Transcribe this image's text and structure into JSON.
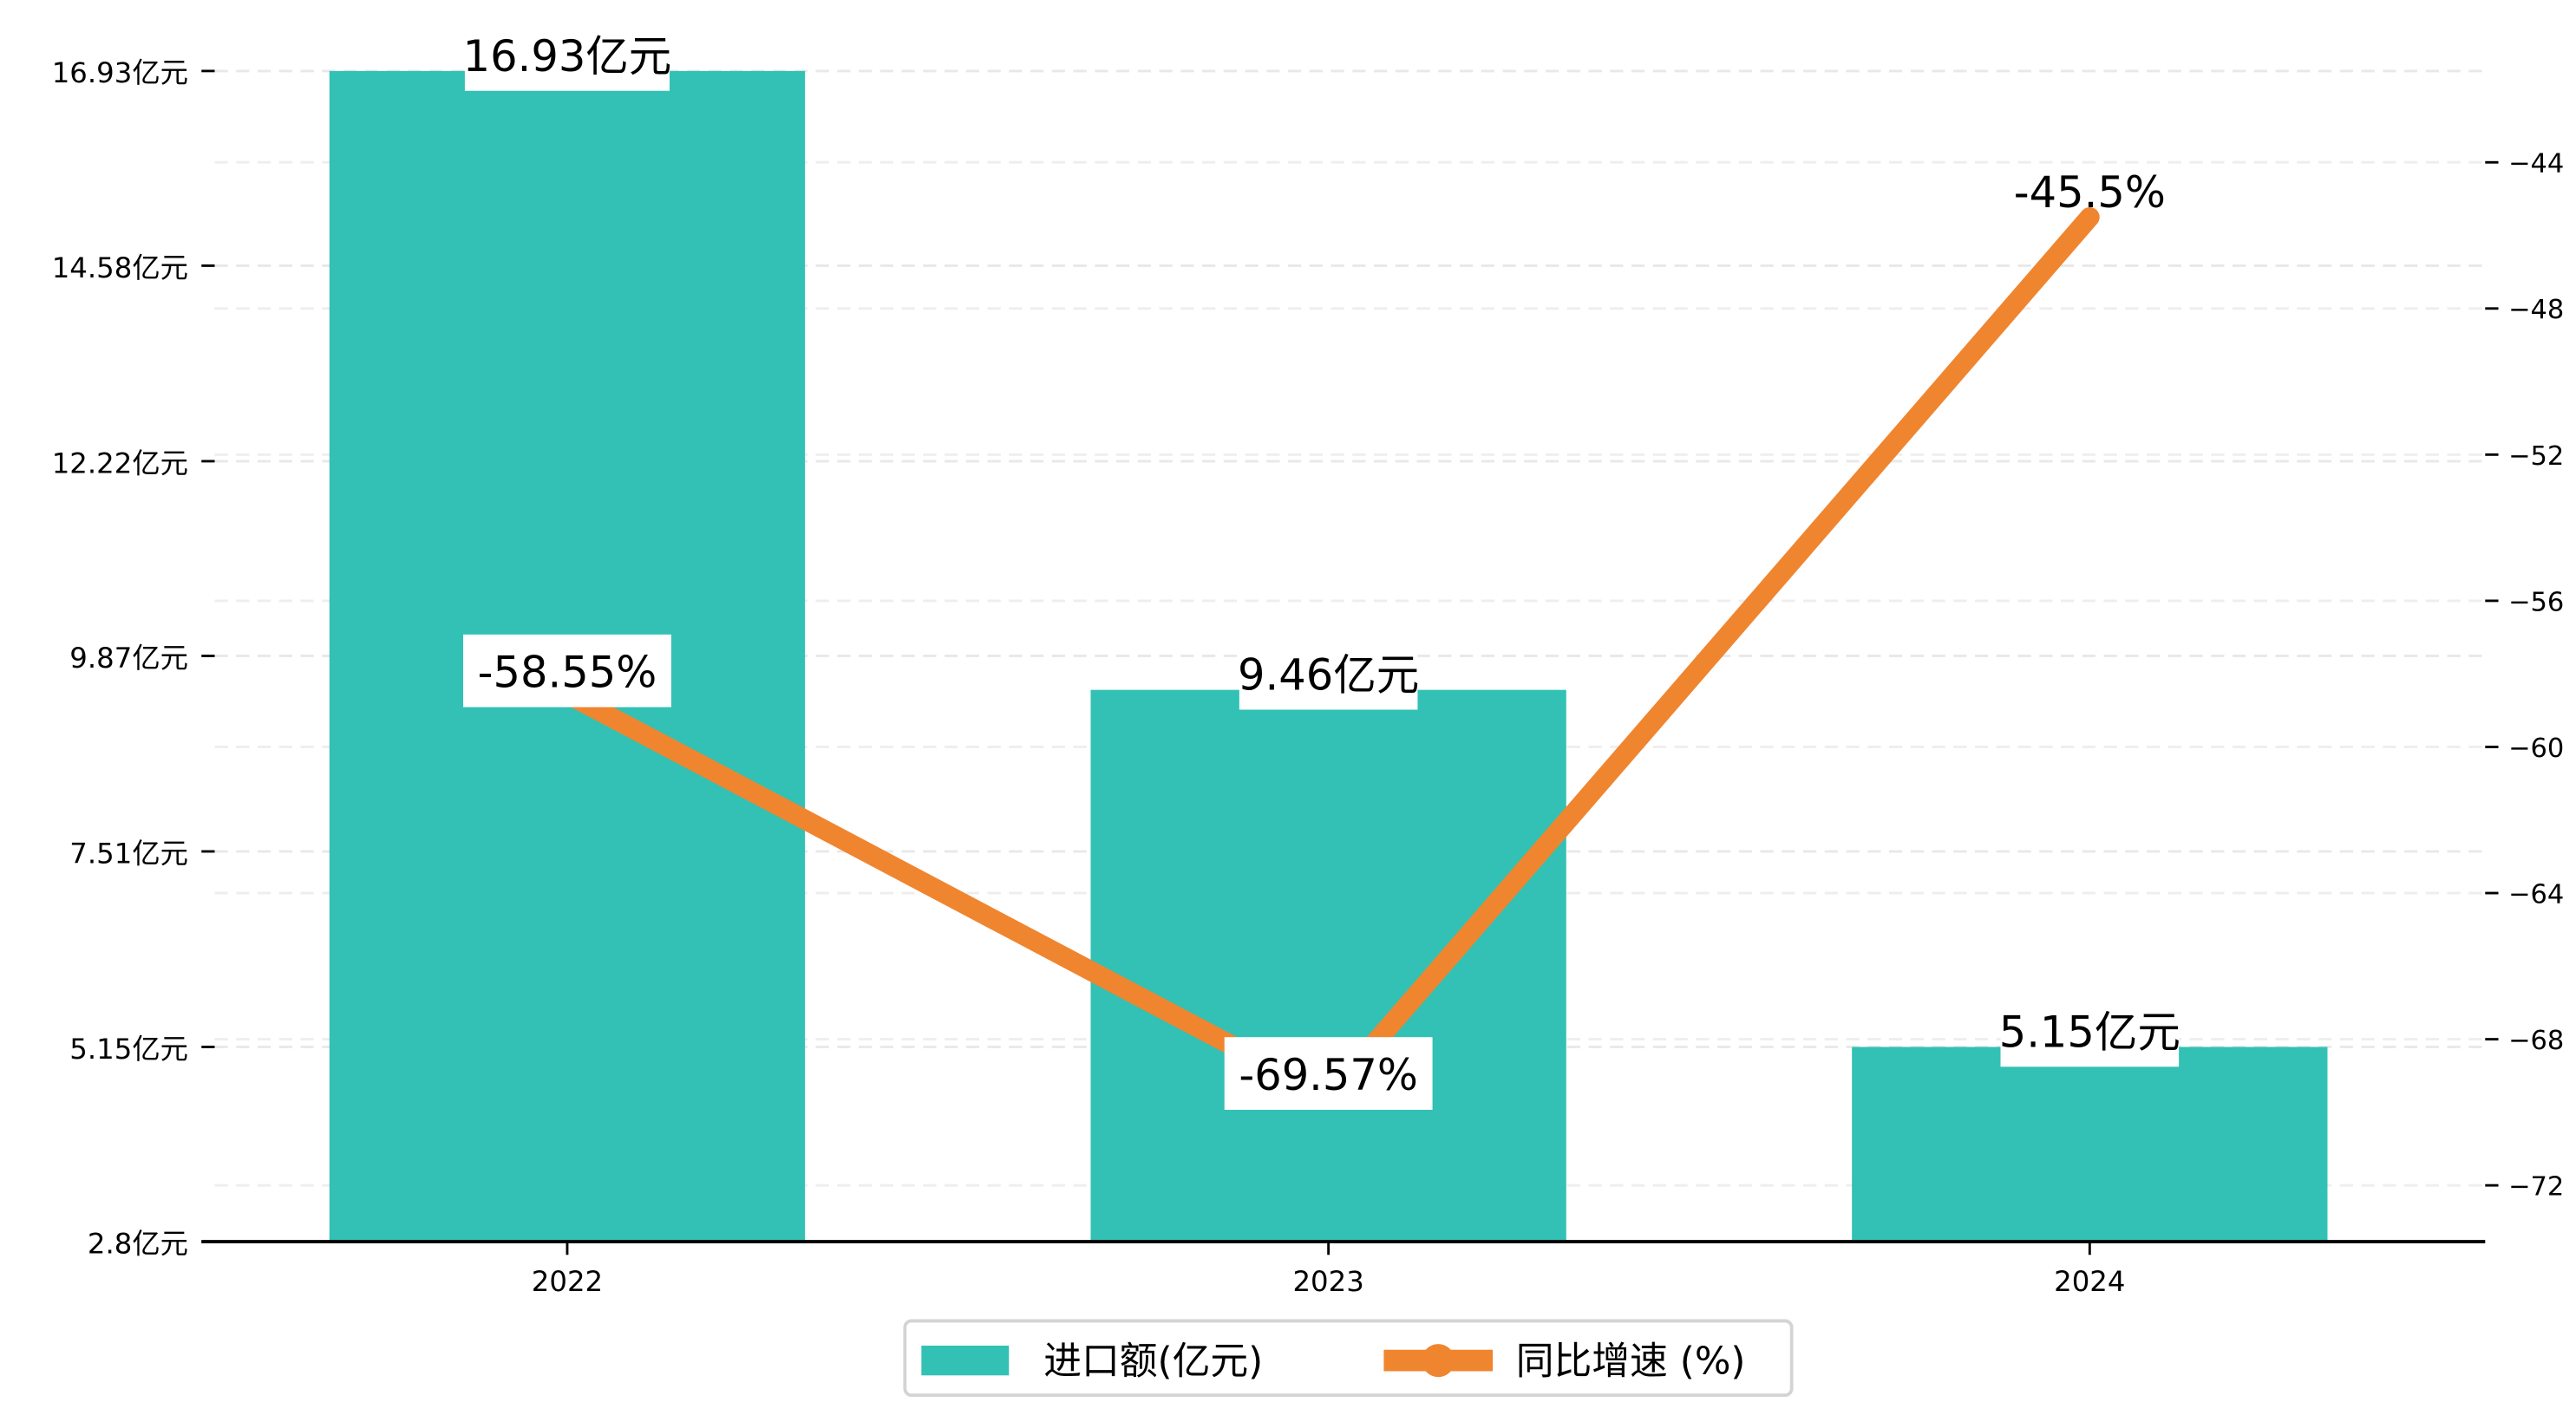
{
  "chart_data": {
    "type": "bar+line",
    "categories": [
      "2022",
      "2023",
      "2024"
    ],
    "series": [
      {
        "name": "进口额(亿元)",
        "type": "bar",
        "axis": "left",
        "color": "#32C1B4",
        "values": [
          16.93,
          9.46,
          5.15
        ],
        "labels": [
          "16.93亿元",
          "9.46亿元",
          "5.15亿元"
        ]
      },
      {
        "name": "同比增速 (%)",
        "type": "line",
        "axis": "right",
        "color": "#F0852F",
        "values": [
          -58.55,
          -69.57,
          -45.5
        ],
        "labels": [
          "-58.55%",
          "-69.57%",
          "-45.5%"
        ]
      }
    ],
    "left_axis": {
      "ylim": [
        2.8,
        16.93
      ],
      "ticks": [
        2.8,
        5.15,
        7.51,
        9.87,
        12.22,
        14.58,
        16.93
      ],
      "tick_labels": [
        "2.8亿元",
        "5.15亿元",
        "7.51亿元",
        "9.87亿元",
        "12.22亿元",
        "14.58亿元",
        "16.93亿元"
      ]
    },
    "right_axis": {
      "ylim": [
        -73.54,
        -41.5
      ],
      "ticks": [
        -72,
        -68,
        -64,
        -60,
        -56,
        -52,
        -48,
        -44
      ],
      "tick_labels": [
        "−72",
        "−68",
        "−64",
        "−60",
        "−56",
        "−52",
        "−48",
        "−44"
      ]
    },
    "grid": true,
    "legend": {
      "placement": "bottom-center",
      "entries": [
        "进口额(亿元)",
        "同比增速 (%)"
      ]
    }
  }
}
